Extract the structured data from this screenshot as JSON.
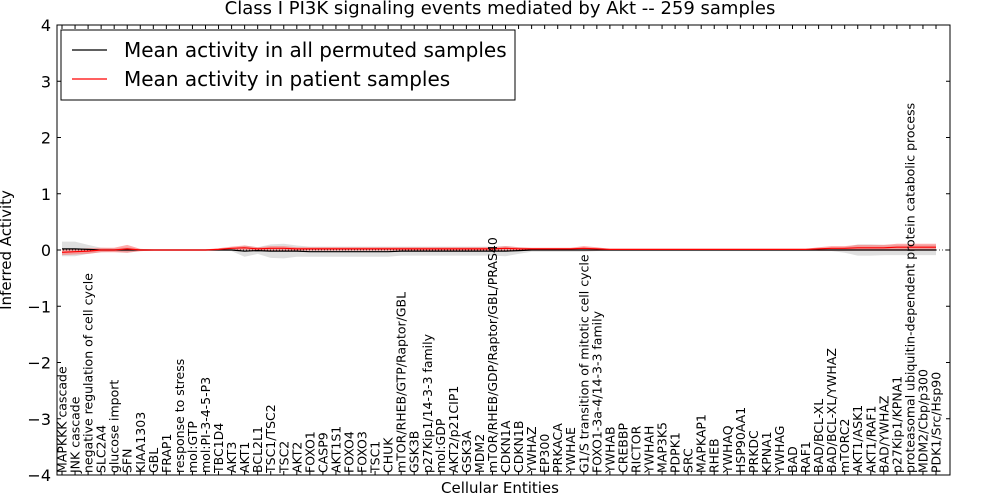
{
  "chart_data": {
    "type": "line",
    "title": "Class I PI3K signaling events mediated by Akt -- 259 samples",
    "xlabel": "Cellular Entities",
    "ylabel": "Inferred Activity",
    "ylim": [
      -4,
      4
    ],
    "yticks": [
      "4",
      "3",
      "2",
      "1",
      "0",
      "−1",
      "−2",
      "−3",
      "−4"
    ],
    "grid": false,
    "legend_position": "top-left",
    "categories": [
      "MAPKKK cascade",
      "JNK cascade",
      "negative regulation of cell cycle",
      "SLC2A4",
      "glucose import",
      "SFN",
      "KIAA1303",
      "GBL",
      "FRAP1",
      "response to stress",
      "mol:GTP",
      "mol:PI-3-4-5-P3",
      "TBC1D4",
      "AKT3",
      "AKT1",
      "BCL2L1",
      "TSC1/TSC2",
      "TSC2",
      "AKT2",
      "FOXO1",
      "CASP9",
      "AKT1S1",
      "FOXO4",
      "FOXO3",
      "TSC1",
      "CHUK",
      "mTOR/RHEB/GTP/Raptor/GBL",
      "GSK3B",
      "p27Kip1/14-3-3 family",
      "mol:GDP",
      "AKT2/p21CIP1",
      "GSK3A",
      "MDM2",
      "mTOR/RHEB/GDP/Raptor/GBL/PRAS40",
      "CDKN1A",
      "CDKN1B",
      "YWHAZ",
      "EP300",
      "PRKACA",
      "YWHAE",
      "G1/S transition of mitotic cell cycle",
      "FOXO1-3a-4/14-3-3 family",
      "YWHAB",
      "CREBBP",
      "RICTOR",
      "YWHAH",
      "MAP3K5",
      "PDPK1",
      "SRC",
      "MAPKAP1",
      "RHEB",
      "YWHAQ",
      "HSP90AA1",
      "PRKDC",
      "KPNA1",
      "YWHAG",
      "BAD",
      "RAF1",
      "BAD/BCL-XL",
      "BAD/BCL-XL/YWHAZ",
      "mTORC2",
      "AKT1/ASK1",
      "AKT1/RAF1",
      "BAD/YWHAZ",
      "p27Kip1/KPNA1",
      "proteasomal ubiquitin-dependent protein catabolic process",
      "MDM2/Cbp/p300",
      "PDK1/Src/Hsp90"
    ],
    "series": [
      {
        "name": "Mean activity in all permuted samples",
        "color": "#000000",
        "values": [
          0.02,
          0.02,
          0.01,
          0,
          0,
          0,
          0,
          0,
          0,
          0,
          0,
          0,
          0,
          0,
          -0.02,
          -0.01,
          -0.02,
          -0.02,
          -0.02,
          -0.03,
          -0.03,
          -0.03,
          -0.03,
          -0.03,
          -0.03,
          -0.03,
          -0.02,
          -0.02,
          -0.02,
          -0.02,
          -0.02,
          -0.02,
          -0.02,
          -0.02,
          -0.02,
          -0.01,
          0,
          0,
          0,
          0,
          0,
          0,
          0,
          0,
          0,
          0,
          0,
          0,
          0,
          0,
          0,
          0,
          0,
          0,
          0,
          0,
          0,
          0,
          0,
          0,
          0,
          0,
          0,
          0,
          0,
          0,
          0,
          0
        ],
        "band": [
          0.13,
          0.13,
          0.08,
          0.04,
          0.03,
          0.05,
          0.02,
          0.01,
          0.01,
          0.01,
          0.01,
          0.01,
          0.01,
          0.02,
          0.1,
          0.06,
          0.12,
          0.13,
          0.1,
          0.09,
          0.09,
          0.09,
          0.09,
          0.09,
          0.09,
          0.09,
          0.08,
          0.08,
          0.08,
          0.08,
          0.08,
          0.08,
          0.08,
          0.08,
          0.09,
          0.06,
          0.03,
          0.03,
          0.03,
          0.03,
          0.03,
          0.02,
          0.02,
          0.02,
          0.02,
          0.02,
          0.02,
          0.02,
          0.02,
          0.02,
          0.02,
          0.02,
          0.02,
          0.02,
          0.02,
          0.02,
          0.02,
          0.02,
          0.02,
          0.02,
          0.05,
          0.1,
          0.1,
          0.09,
          0.09,
          0.09,
          0.09,
          0.09
        ]
      },
      {
        "name": "Mean activity in patient samples",
        "color": "#ff0000",
        "values": [
          -0.04,
          -0.03,
          -0.02,
          0,
          0,
          0.02,
          0,
          0,
          0,
          0,
          0,
          0,
          0.01,
          0.03,
          0.04,
          0.02,
          0.03,
          0.03,
          0.02,
          0.02,
          0.02,
          0.02,
          0.02,
          0.02,
          0.02,
          0.02,
          0.02,
          0.02,
          0.02,
          0.02,
          0.02,
          0.02,
          0.02,
          0.02,
          0.03,
          0.02,
          0.02,
          0.02,
          0.02,
          0.02,
          0.03,
          0.02,
          0.01,
          0.01,
          0.01,
          0.01,
          0.01,
          0.01,
          0.01,
          0.01,
          0.01,
          0.01,
          0.01,
          0.01,
          0.01,
          0.01,
          0.01,
          0.01,
          0.02,
          0.03,
          0.03,
          0.04,
          0.04,
          0.04,
          0.05,
          0.05,
          0.05,
          0.05
        ],
        "band": [
          0.05,
          0.05,
          0.05,
          0.04,
          0.04,
          0.07,
          0.02,
          0.01,
          0.01,
          0.01,
          0.01,
          0.01,
          0.02,
          0.03,
          0.04,
          0.03,
          0.04,
          0.04,
          0.03,
          0.03,
          0.03,
          0.03,
          0.03,
          0.03,
          0.03,
          0.03,
          0.03,
          0.03,
          0.03,
          0.03,
          0.03,
          0.03,
          0.03,
          0.03,
          0.04,
          0.03,
          0.02,
          0.02,
          0.02,
          0.02,
          0.04,
          0.03,
          0.01,
          0.01,
          0.01,
          0.01,
          0.01,
          0.01,
          0.01,
          0.01,
          0.01,
          0.01,
          0.01,
          0.01,
          0.01,
          0.01,
          0.01,
          0.01,
          0.03,
          0.04,
          0.04,
          0.05,
          0.05,
          0.05,
          0.06,
          0.06,
          0.06,
          0.06
        ]
      }
    ]
  }
}
